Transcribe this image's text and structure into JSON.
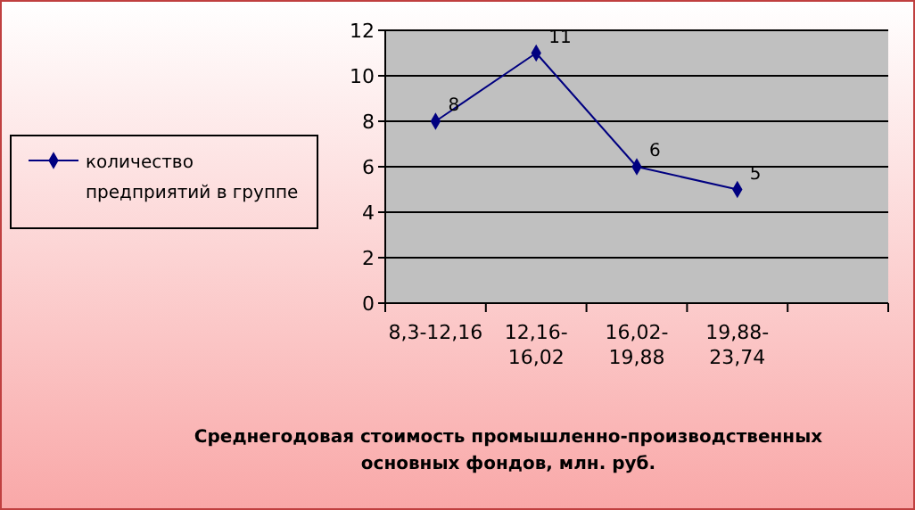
{
  "chart_data": {
    "type": "line",
    "xlabel": "Среднегодовая стоимость  промышленно-производственных основных  фондов, млн. руб.",
    "categories": [
      "8,3-12,16",
      "12,16-16,02",
      "16,02-19,88",
      "19,88-23,74",
      null
    ],
    "series": [
      {
        "name": "количество предприятий в группе",
        "color": "#000080",
        "values": [
          8,
          11,
          6,
          5,
          null
        ]
      }
    ],
    "ylim": [
      0,
      12
    ],
    "yticks": [
      0,
      2,
      4,
      6,
      8,
      10,
      12
    ],
    "grid": "y",
    "legend": "left",
    "marker": "diamond",
    "data_labels": true
  }
}
